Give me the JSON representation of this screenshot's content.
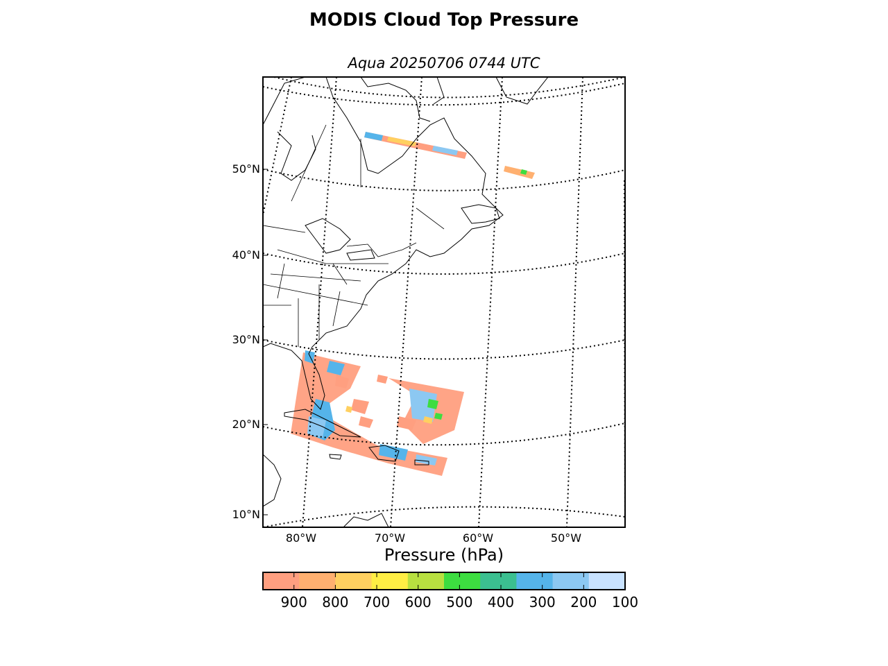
{
  "title": "MODIS Cloud Top Pressure",
  "subtitle": "Aqua 20250706 0744 UTC",
  "map": {
    "projection": "conic",
    "extent": {
      "lon": [
        -85,
        -44
      ],
      "lat": [
        8,
        60
      ]
    },
    "grid_style": "dotted",
    "lat_labels": [
      "10°N",
      "20°N",
      "30°N",
      "40°N",
      "50°N"
    ],
    "lon_labels": [
      "80°W",
      "70°W",
      "60°W",
      "50°W"
    ],
    "features": [
      "coastlines",
      "country-borders",
      "state-borders"
    ]
  },
  "colorbar": {
    "label": "Pressure (hPa)",
    "ticks": [
      "900",
      "800",
      "700",
      "600",
      "500",
      "400",
      "300",
      "200",
      "100"
    ],
    "range": [
      975,
      100
    ],
    "colors": [
      "#ff9f80",
      "#ffb070",
      "#ffd060",
      "#ffee44",
      "#b8e040",
      "#3ddd40",
      "#3bbf90",
      "#55b4ea",
      "#8cc8f2",
      "#c8e2ff"
    ]
  }
}
